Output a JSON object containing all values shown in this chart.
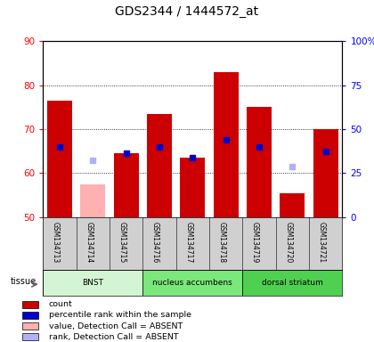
{
  "title": "GDS2344 / 1444572_at",
  "samples": [
    "GSM134713",
    "GSM134714",
    "GSM134715",
    "GSM134716",
    "GSM134717",
    "GSM134718",
    "GSM134719",
    "GSM134720",
    "GSM134721"
  ],
  "count_values": [
    76.5,
    null,
    64.5,
    73.5,
    63.5,
    83.0,
    75.0,
    55.5,
    70.0
  ],
  "rank_values": [
    66.0,
    null,
    64.5,
    66.0,
    63.5,
    67.5,
    66.0,
    null,
    65.0
  ],
  "absent_value": [
    null,
    57.5,
    null,
    null,
    null,
    null,
    null,
    null,
    null
  ],
  "absent_rank": [
    null,
    63.0,
    null,
    null,
    null,
    null,
    null,
    null,
    null
  ],
  "absent_rank_only": [
    null,
    null,
    null,
    null,
    null,
    null,
    null,
    61.5,
    null
  ],
  "ylim_left": [
    50,
    90
  ],
  "ylim_right": [
    0,
    100
  ],
  "yticks_left": [
    50,
    60,
    70,
    80,
    90
  ],
  "yticks_right": [
    0,
    25,
    50,
    75,
    100
  ],
  "ytick_labels_right": [
    "0",
    "25",
    "50",
    "75",
    "100%"
  ],
  "tissue_groups": [
    {
      "label": "BNST",
      "start": 0,
      "end": 3,
      "color": "#d4f5d4"
    },
    {
      "label": "nucleus accumbens",
      "start": 3,
      "end": 6,
      "color": "#7ae87a"
    },
    {
      "label": "dorsal striatum",
      "start": 6,
      "end": 9,
      "color": "#50d050"
    }
  ],
  "count_color": "#cc0000",
  "rank_color": "#0000cc",
  "absent_value_color": "#ffb0b0",
  "absent_rank_color": "#b0b0ff",
  "background_color": "#ffffff",
  "sample_bg_color": "#d0d0d0"
}
